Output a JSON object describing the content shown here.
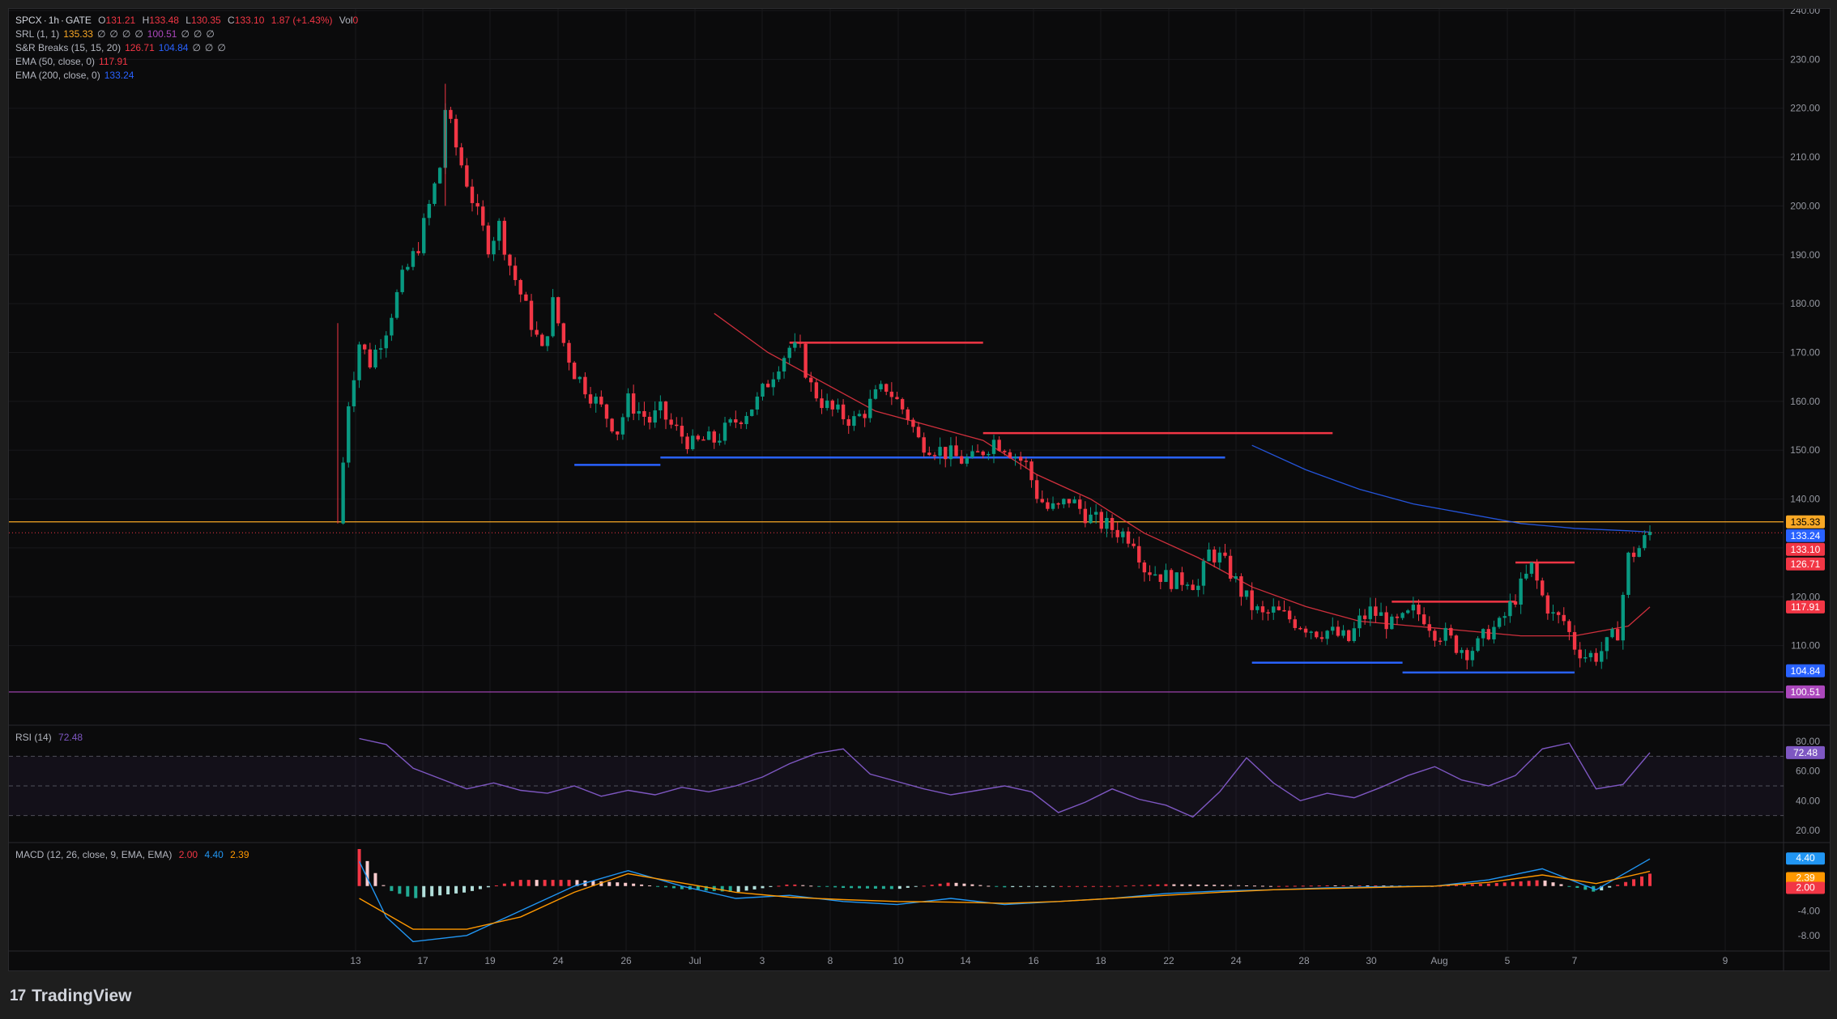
{
  "header": {
    "symbol": "SPCX",
    "interval": "1h",
    "exchange": "GATE",
    "open_label": "O",
    "open": "131.21",
    "high_label": "H",
    "high": "133.48",
    "low_label": "L",
    "low": "130.35",
    "close_label": "C",
    "close": "133.10",
    "change": "1.87 (+1.43%)",
    "vol_label": "Vol",
    "vol": "0"
  },
  "indicators": [
    {
      "label": "SRL (1, 1)",
      "values": [
        "135.33",
        "∅",
        "∅",
        "∅",
        "∅",
        "100.51",
        "∅",
        "∅",
        "∅"
      ],
      "colors": [
        "#f9a825",
        "#b2b5be",
        "#b2b5be",
        "#b2b5be",
        "#b2b5be",
        "#ab47bc",
        "#b2b5be",
        "#b2b5be",
        "#b2b5be"
      ]
    },
    {
      "label": "S&R Breaks (15, 15, 20)",
      "values": [
        "126.71",
        "104.84",
        "∅",
        "∅",
        "∅"
      ],
      "colors": [
        "#f23645",
        "#2962ff",
        "#b2b5be",
        "#b2b5be",
        "#b2b5be"
      ]
    },
    {
      "label": "EMA (50, close, 0)",
      "values": [
        "117.91"
      ],
      "colors": [
        "#f23645"
      ]
    },
    {
      "label": "EMA (200, close, 0)",
      "values": [
        "133.24"
      ],
      "colors": [
        "#2962ff"
      ]
    }
  ],
  "price_axis": {
    "ticks": [
      "240.00",
      "230.00",
      "220.00",
      "210.00",
      "200.00",
      "190.00",
      "180.00",
      "170.00",
      "160.00",
      "150.00",
      "140.00",
      "130.00",
      "120.00",
      "110.00"
    ],
    "ticks_visible": [
      240,
      230,
      220,
      210,
      200,
      190,
      180,
      170,
      160,
      150,
      140,
      130,
      120,
      110
    ],
    "tags": [
      {
        "text": "135.33",
        "value": 135.33,
        "color": "#f9a825",
        "text_color": "#000000"
      },
      {
        "text": "133.24",
        "value": 133.24,
        "color": "#2962ff",
        "text_color": "#ffffff"
      },
      {
        "text": "133.10",
        "value": 133.1,
        "color": "#f23645",
        "text_color": "#ffffff"
      },
      {
        "text": "126.71",
        "value": 126.71,
        "color": "#f23645",
        "text_color": "#ffffff"
      },
      {
        "text": "117.91",
        "value": 117.91,
        "color": "#f23645",
        "text_color": "#ffffff"
      },
      {
        "text": "104.84",
        "value": 104.84,
        "color": "#2962ff",
        "text_color": "#ffffff"
      },
      {
        "text": "100.51",
        "value": 100.51,
        "color": "#ab47bc",
        "text_color": "#ffffff"
      }
    ]
  },
  "rsi": {
    "label": "RSI (14)",
    "value": "72.48",
    "ticks": [
      "80.00",
      "60.00",
      "40.00",
      "20.00"
    ],
    "tick_values": [
      80,
      60,
      40,
      20
    ],
    "levels": [
      70,
      50,
      30
    ]
  },
  "macd": {
    "label": "MACD (12, 26, close, 9, EMA, EMA)",
    "values": [
      "2.00",
      "4.40",
      "2.39"
    ],
    "colors": [
      "#f23645",
      "#2196f3",
      "#ff9800"
    ],
    "ticks": [
      "0.00",
      "-4.00",
      "-8.00"
    ],
    "tick_values": [
      0,
      -4,
      -8
    ],
    "tags": [
      {
        "text": "4.40",
        "value": 4.4,
        "color": "#2196f3"
      },
      {
        "text": "2.39",
        "value": 2.39,
        "color": "#ff9800"
      },
      {
        "text": "2.00",
        "value": 2.0,
        "color": "#f23645"
      }
    ]
  },
  "time_axis": {
    "labels": [
      "13",
      "17",
      "19",
      "24",
      "26",
      "Jul",
      "3",
      "8",
      "10",
      "14",
      "16",
      "18",
      "22",
      "24",
      "28",
      "30",
      "Aug",
      "5",
      "7",
      "9"
    ]
  },
  "chart_data": {
    "type": "candlestick",
    "title": "SPCX · 1h · GATE",
    "x_axis_labels": [
      "13",
      "17",
      "19",
      "24",
      "26",
      "Jul",
      "3",
      "8",
      "10",
      "14",
      "16",
      "18",
      "22",
      "24",
      "28",
      "30",
      "Aug",
      "5",
      "7",
      "9"
    ],
    "ylim": [
      98,
      240
    ],
    "close_path": [
      [
        0,
        135
      ],
      [
        2,
        160
      ],
      [
        4,
        172
      ],
      [
        6,
        168
      ],
      [
        9,
        175
      ],
      [
        12,
        185
      ],
      [
        15,
        192
      ],
      [
        17,
        200
      ],
      [
        19,
        208
      ],
      [
        20,
        220
      ],
      [
        22,
        212
      ],
      [
        24,
        205
      ],
      [
        26,
        198
      ],
      [
        28,
        192
      ],
      [
        30,
        196
      ],
      [
        32,
        188
      ],
      [
        34,
        182
      ],
      [
        36,
        176
      ],
      [
        38,
        170
      ],
      [
        40,
        180
      ],
      [
        42,
        172
      ],
      [
        44,
        166
      ],
      [
        46,
        163
      ],
      [
        48,
        160
      ],
      [
        50,
        157
      ],
      [
        52,
        154
      ],
      [
        54,
        160
      ],
      [
        56,
        158
      ],
      [
        58,
        156
      ],
      [
        60,
        158
      ],
      [
        62,
        155
      ],
      [
        64,
        153
      ],
      [
        66,
        151
      ],
      [
        68,
        152
      ],
      [
        70,
        152
      ],
      [
        72,
        154
      ],
      [
        74,
        156
      ],
      [
        76,
        158
      ],
      [
        78,
        160
      ],
      [
        80,
        164
      ],
      [
        82,
        168
      ],
      [
        84,
        171
      ],
      [
        86,
        170
      ],
      [
        88,
        163
      ],
      [
        90,
        160
      ],
      [
        92,
        158
      ],
      [
        94,
        157
      ],
      [
        96,
        156
      ],
      [
        98,
        158
      ],
      [
        100,
        161
      ],
      [
        102,
        163
      ],
      [
        104,
        160
      ],
      [
        106,
        157
      ],
      [
        108,
        152
      ],
      [
        110,
        151
      ],
      [
        112,
        150
      ],
      [
        114,
        149
      ],
      [
        116,
        148
      ],
      [
        118,
        148
      ],
      [
        120,
        150
      ],
      [
        122,
        152
      ],
      [
        124,
        151
      ],
      [
        126,
        149
      ],
      [
        128,
        147
      ],
      [
        130,
        141
      ],
      [
        132,
        138
      ],
      [
        134,
        138
      ],
      [
        136,
        140
      ],
      [
        138,
        138
      ],
      [
        140,
        136
      ],
      [
        142,
        135
      ],
      [
        144,
        134
      ],
      [
        146,
        133
      ],
      [
        148,
        132
      ],
      [
        150,
        126
      ],
      [
        152,
        125
      ],
      [
        154,
        124
      ],
      [
        156,
        123
      ],
      [
        158,
        124
      ],
      [
        160,
        122
      ],
      [
        162,
        129
      ],
      [
        164,
        128
      ],
      [
        166,
        125
      ],
      [
        168,
        121
      ],
      [
        170,
        118
      ],
      [
        172,
        116
      ],
      [
        174,
        117
      ],
      [
        176,
        116
      ],
      [
        178,
        115
      ],
      [
        180,
        114
      ],
      [
        182,
        113
      ],
      [
        184,
        113
      ],
      [
        186,
        112
      ],
      [
        188,
        111
      ],
      [
        190,
        115
      ],
      [
        192,
        117
      ],
      [
        194,
        116
      ],
      [
        196,
        114
      ],
      [
        198,
        115
      ],
      [
        200,
        117
      ],
      [
        202,
        116
      ],
      [
        204,
        113
      ],
      [
        206,
        112
      ],
      [
        208,
        110
      ],
      [
        210,
        109
      ],
      [
        212,
        110
      ],
      [
        214,
        113
      ],
      [
        216,
        114
      ],
      [
        218,
        118
      ],
      [
        220,
        122
      ],
      [
        222,
        126
      ],
      [
        224,
        120
      ],
      [
        226,
        116
      ],
      [
        228,
        115
      ],
      [
        230,
        110
      ],
      [
        232,
        108
      ],
      [
        234,
        108
      ],
      [
        236,
        110
      ],
      [
        238,
        113
      ],
      [
        240,
        128
      ],
      [
        242,
        130
      ],
      [
        244,
        133.1
      ]
    ],
    "series": [
      {
        "name": "EMA (50, close, 0)",
        "color": "#f23645",
        "points": [
          [
            70,
            178
          ],
          [
            80,
            170
          ],
          [
            90,
            164
          ],
          [
            100,
            158
          ],
          [
            110,
            155
          ],
          [
            120,
            152
          ],
          [
            130,
            145
          ],
          [
            140,
            140
          ],
          [
            150,
            133
          ],
          [
            160,
            128
          ],
          [
            170,
            122
          ],
          [
            180,
            118
          ],
          [
            190,
            115
          ],
          [
            200,
            114
          ],
          [
            210,
            113
          ],
          [
            220,
            112
          ],
          [
            230,
            112
          ],
          [
            240,
            114
          ],
          [
            244,
            117.91
          ]
        ]
      },
      {
        "name": "EMA (200, close, 0)",
        "color": "#2962ff",
        "points": [
          [
            170,
            151
          ],
          [
            180,
            146
          ],
          [
            190,
            142
          ],
          [
            200,
            139
          ],
          [
            210,
            137
          ],
          [
            220,
            135
          ],
          [
            230,
            134
          ],
          [
            240,
            133.5
          ],
          [
            244,
            133.24
          ]
        ]
      }
    ],
    "levels": [
      {
        "name": "SRL",
        "value": 135.33,
        "color": "#f9a825"
      },
      {
        "name": "SRL",
        "value": 100.51,
        "color": "#ab47bc"
      }
    ],
    "sr_segments": [
      {
        "value": 172,
        "from": 84,
        "to": 120,
        "color": "#f23645"
      },
      {
        "value": 153.5,
        "from": 120,
        "to": 185,
        "color": "#f23645"
      },
      {
        "value": 147,
        "from": 44,
        "to": 60,
        "color": "#2962ff"
      },
      {
        "value": 148.5,
        "from": 60,
        "to": 165,
        "color": "#2962ff"
      },
      {
        "value": 119,
        "from": 196,
        "to": 219,
        "color": "#f23645"
      },
      {
        "value": 127,
        "from": 219,
        "to": 230,
        "color": "#f23645"
      },
      {
        "value": 106.5,
        "from": 170,
        "to": 198,
        "color": "#2962ff"
      },
      {
        "value": 104.5,
        "from": 198,
        "to": 230,
        "color": "#2962ff"
      }
    ],
    "rsi_path": [
      [
        0,
        82
      ],
      [
        5,
        78
      ],
      [
        10,
        62
      ],
      [
        15,
        55
      ],
      [
        20,
        48
      ],
      [
        25,
        52
      ],
      [
        30,
        47
      ],
      [
        35,
        45
      ],
      [
        40,
        50
      ],
      [
        45,
        43
      ],
      [
        50,
        47
      ],
      [
        55,
        44
      ],
      [
        60,
        49
      ],
      [
        65,
        46
      ],
      [
        70,
        50
      ],
      [
        75,
        56
      ],
      [
        80,
        65
      ],
      [
        85,
        72
      ],
      [
        90,
        75
      ],
      [
        95,
        58
      ],
      [
        100,
        53
      ],
      [
        105,
        48
      ],
      [
        110,
        44
      ],
      [
        115,
        47
      ],
      [
        120,
        50
      ],
      [
        125,
        46
      ],
      [
        130,
        32
      ],
      [
        135,
        39
      ],
      [
        140,
        48
      ],
      [
        145,
        41
      ],
      [
        150,
        37
      ],
      [
        155,
        29
      ],
      [
        160,
        46
      ],
      [
        165,
        69
      ],
      [
        170,
        52
      ],
      [
        175,
        40
      ],
      [
        180,
        45
      ],
      [
        185,
        42
      ],
      [
        190,
        49
      ],
      [
        195,
        57
      ],
      [
        200,
        63
      ],
      [
        205,
        54
      ],
      [
        210,
        50
      ],
      [
        215,
        57
      ],
      [
        220,
        75
      ],
      [
        225,
        79
      ],
      [
        230,
        48
      ],
      [
        235,
        51
      ],
      [
        240,
        72.48
      ]
    ],
    "macd_line": [
      [
        0,
        4
      ],
      [
        5,
        -5
      ],
      [
        10,
        -9
      ],
      [
        20,
        -8
      ],
      [
        30,
        -4
      ],
      [
        40,
        0
      ],
      [
        50,
        2.5
      ],
      [
        60,
        0
      ],
      [
        70,
        -2
      ],
      [
        80,
        -1.5
      ],
      [
        90,
        -2.5
      ],
      [
        100,
        -3
      ],
      [
        110,
        -2
      ],
      [
        120,
        -3
      ],
      [
        130,
        -2.5
      ],
      [
        140,
        -2
      ],
      [
        150,
        -1.2
      ],
      [
        160,
        -0.8
      ],
      [
        170,
        -0.6
      ],
      [
        180,
        -0.3
      ],
      [
        190,
        -0.1
      ],
      [
        200,
        0
      ],
      [
        210,
        1
      ],
      [
        220,
        2.8
      ],
      [
        230,
        -0.6
      ],
      [
        240,
        4.4
      ]
    ],
    "signal_line": [
      [
        0,
        -2
      ],
      [
        10,
        -7
      ],
      [
        20,
        -7
      ],
      [
        30,
        -5
      ],
      [
        40,
        -1
      ],
      [
        50,
        2
      ],
      [
        60,
        0.5
      ],
      [
        70,
        -1
      ],
      [
        80,
        -1.8
      ],
      [
        90,
        -2.2
      ],
      [
        100,
        -2.5
      ],
      [
        110,
        -2.6
      ],
      [
        120,
        -2.8
      ],
      [
        130,
        -2.5
      ],
      [
        140,
        -2
      ],
      [
        150,
        -1.5
      ],
      [
        160,
        -1
      ],
      [
        170,
        -0.6
      ],
      [
        180,
        -0.4
      ],
      [
        190,
        -0.2
      ],
      [
        200,
        0
      ],
      [
        210,
        0.6
      ],
      [
        220,
        1.8
      ],
      [
        230,
        0.4
      ],
      [
        240,
        2.39
      ]
    ]
  },
  "brand": {
    "name": "TradingView",
    "logo": "17"
  }
}
